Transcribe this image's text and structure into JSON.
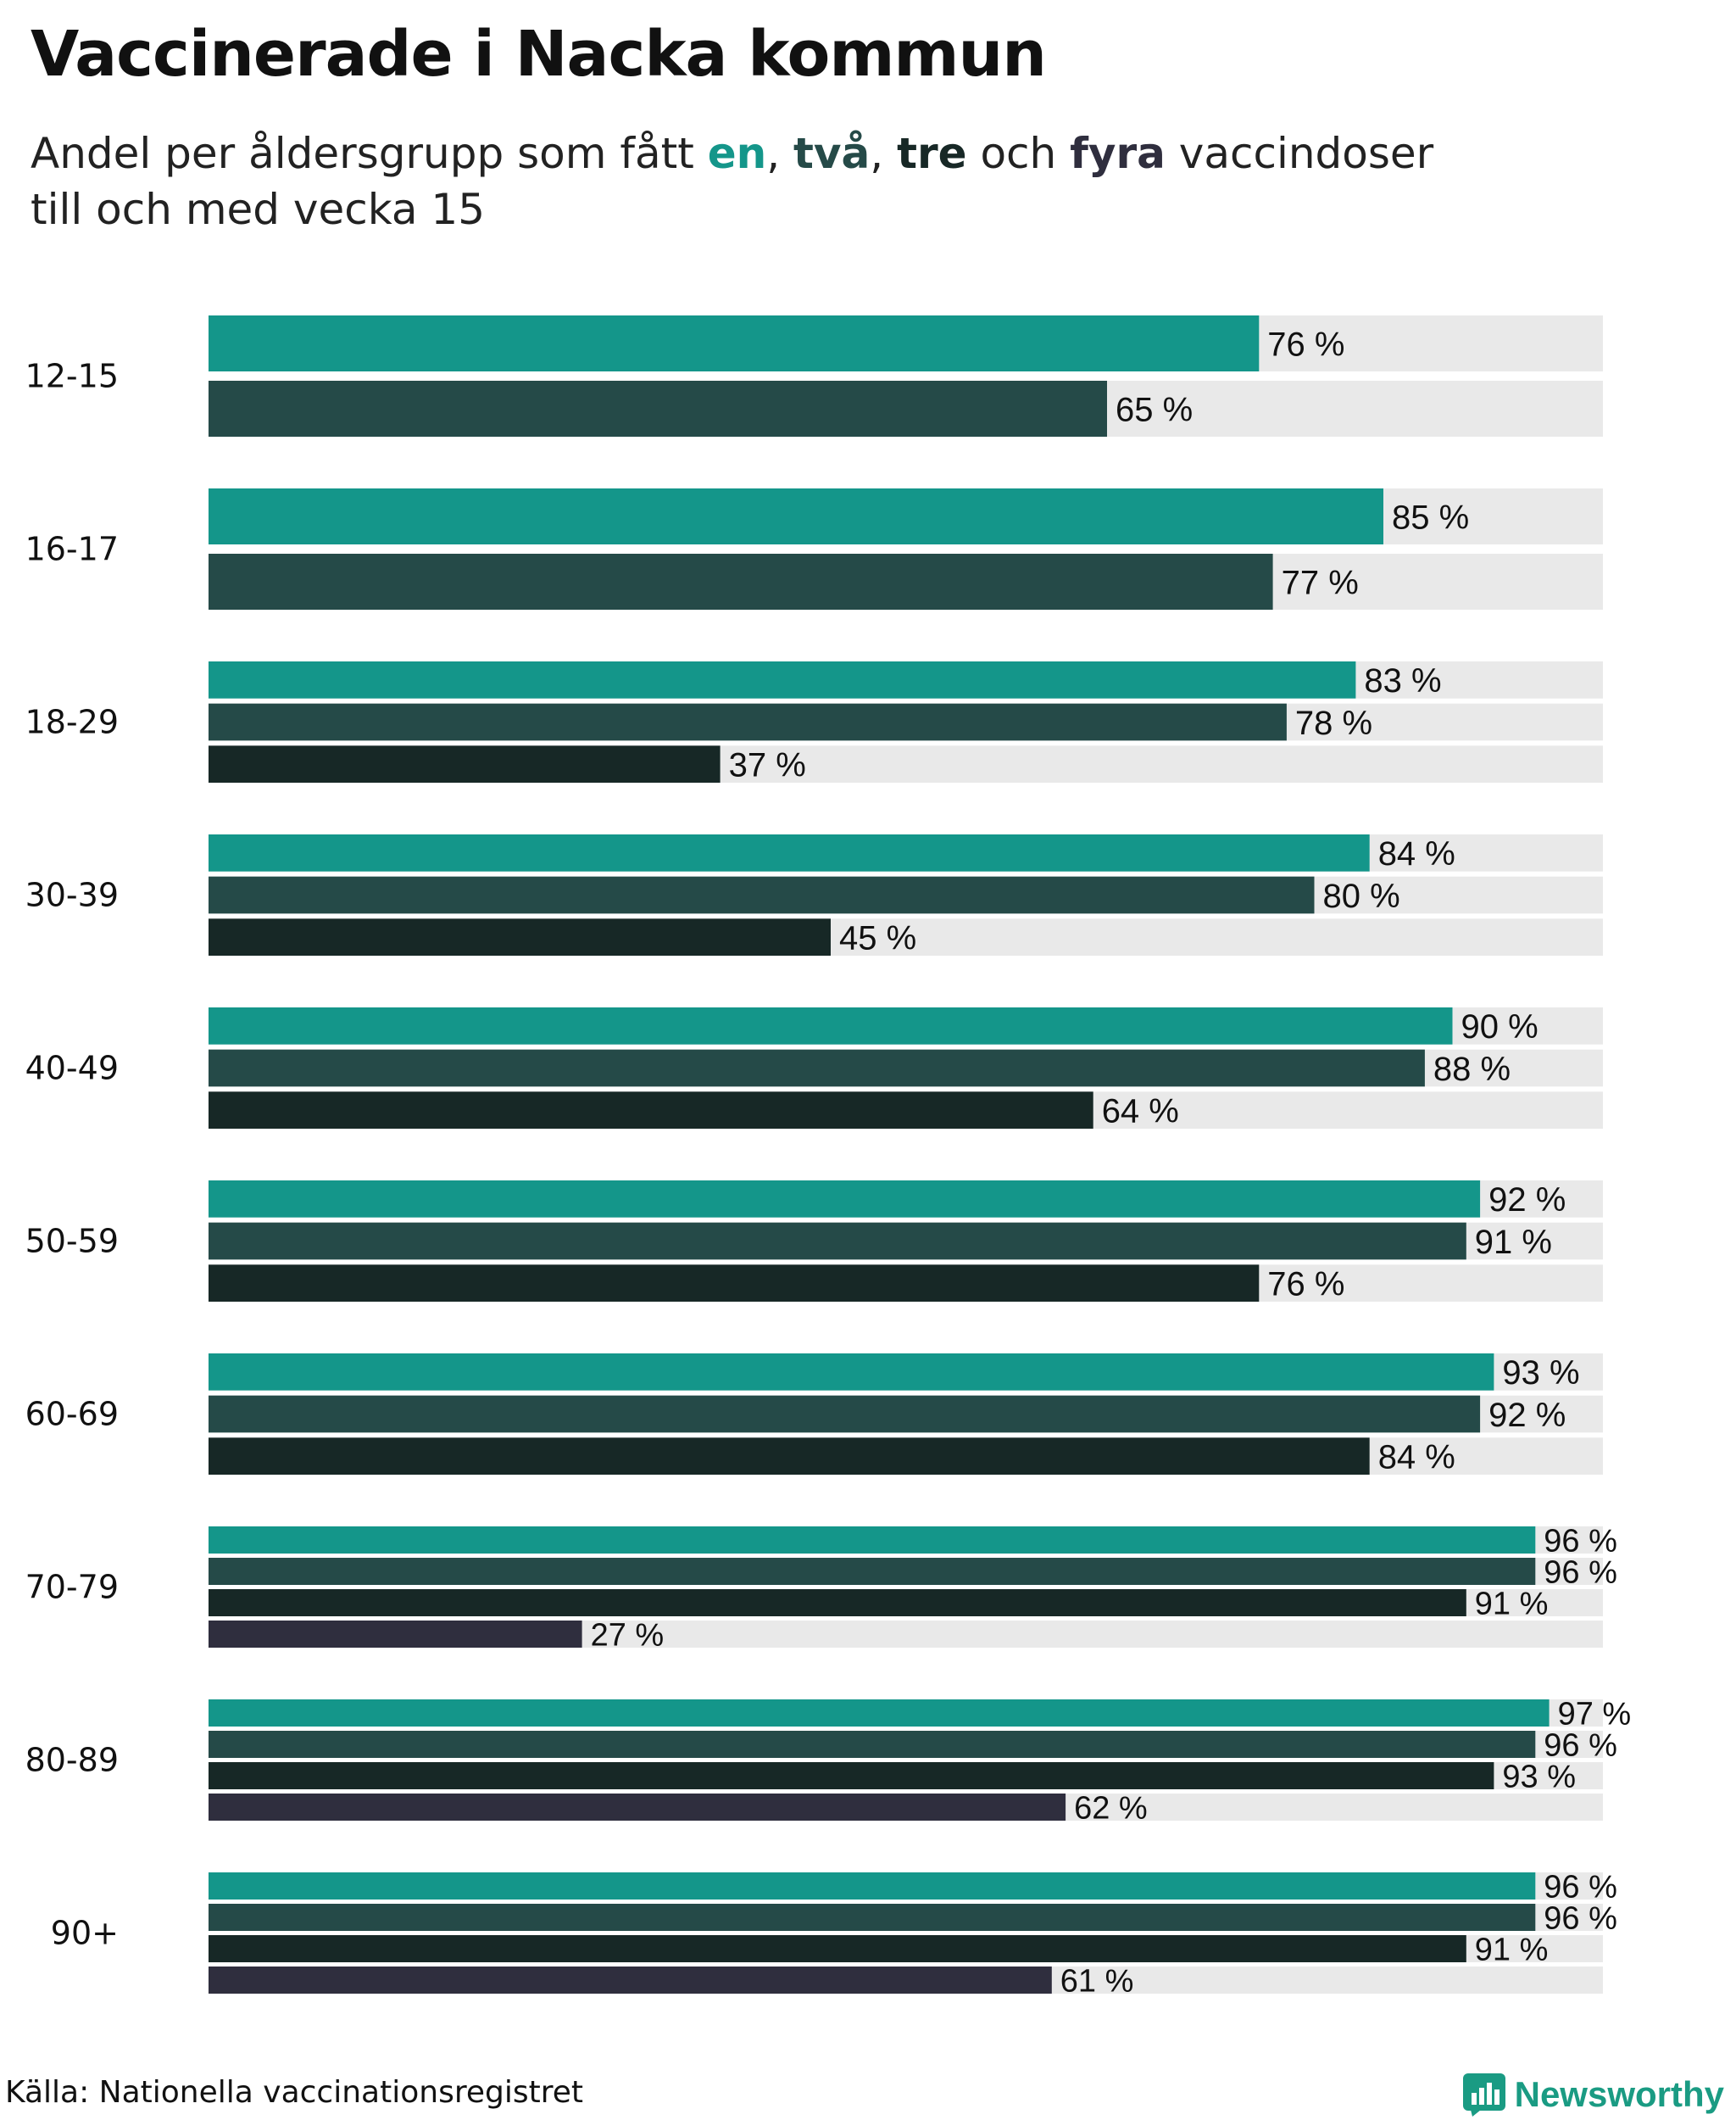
{
  "header": {
    "title": "Vaccinerade i Nacka kommun",
    "subtitle_pre": "Andel per åldersgrupp som fått ",
    "subtitle_sep1": ", ",
    "subtitle_sep2": ", ",
    "subtitle_sep3": " och ",
    "subtitle_post": " vaccindoser",
    "subtitle_line2": "till och med vecka 15"
  },
  "legend": {
    "dose1": "en",
    "dose2": "två",
    "dose3": "tre",
    "dose4": "fyra"
  },
  "colors": {
    "dose1": "#14968a",
    "dose2": "#254a48",
    "dose3": "#172826",
    "dose4": "#2f2e3e",
    "track": "#e9e9e9",
    "brand": "#1a9b83"
  },
  "footer": {
    "source": "Källa: Nationella vaccinationsregistret",
    "brand": "Newsworthy"
  },
  "chart_data": {
    "type": "bar",
    "orientation": "horizontal",
    "title": "Vaccinerade i Nacka kommun",
    "value_suffix": " %",
    "xlim": [
      0,
      100
    ],
    "categories": [
      "12-15",
      "16-17",
      "18-29",
      "30-39",
      "40-49",
      "50-59",
      "60-69",
      "70-79",
      "80-89",
      "90+"
    ],
    "series": [
      {
        "name": "en",
        "values": [
          76,
          85,
          83,
          84,
          90,
          92,
          93,
          96,
          97,
          96
        ]
      },
      {
        "name": "två",
        "values": [
          65,
          77,
          78,
          80,
          88,
          91,
          92,
          96,
          96,
          96
        ]
      },
      {
        "name": "tre",
        "values": [
          null,
          null,
          37,
          45,
          64,
          76,
          84,
          91,
          93,
          91
        ]
      },
      {
        "name": "fyra",
        "values": [
          null,
          null,
          null,
          null,
          null,
          null,
          null,
          27,
          62,
          61
        ]
      }
    ]
  }
}
